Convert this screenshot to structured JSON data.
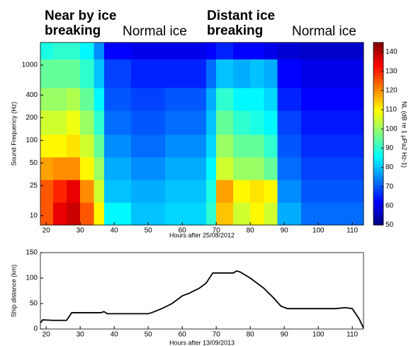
{
  "chart_data": [
    {
      "type": "heatmap",
      "xlabel": "Hours after 25/08/2012",
      "ylabel": "Sound Frequency (Hz)",
      "xlim": [
        18.3,
        113.3
      ],
      "xticks": [
        20,
        30,
        40,
        50,
        60,
        70,
        80,
        90,
        100,
        110
      ],
      "ylim": [
        7.5,
        2000
      ],
      "yscale": "log",
      "yticks": [
        10,
        25,
        50,
        100,
        200,
        400,
        1000
      ],
      "x_edges": [
        18.3,
        22,
        26,
        30,
        34,
        37,
        45,
        55,
        67,
        70,
        75,
        80,
        84,
        88,
        95,
        113.3
      ],
      "y_edges": [
        7.5,
        15,
        30,
        60,
        120,
        250,
        500,
        1200,
        2000
      ],
      "z": [
        [
          125,
          125,
          118,
          110,
          105,
          100,
          95,
          88
        ],
        [
          135,
          130,
          120,
          110,
          105,
          100,
          95,
          90
        ],
        [
          138,
          135,
          120,
          112,
          108,
          102,
          95,
          90
        ],
        [
          125,
          120,
          110,
          105,
          100,
          95,
          90,
          85
        ],
        [
          110,
          105,
          100,
          95,
          90,
          85,
          80,
          75
        ],
        [
          85,
          80,
          78,
          75,
          72,
          70,
          68,
          62
        ],
        [
          80,
          78,
          75,
          72,
          70,
          68,
          65,
          60
        ],
        [
          82,
          80,
          78,
          75,
          72,
          70,
          65,
          60
        ],
        [
          90,
          88,
          85,
          82,
          80,
          78,
          72,
          62
        ],
        [
          115,
          118,
          105,
          100,
          95,
          90,
          80,
          65
        ],
        [
          105,
          110,
          100,
          95,
          90,
          85,
          78,
          62
        ],
        [
          110,
          112,
          100,
          95,
          88,
          85,
          80,
          62
        ],
        [
          105,
          110,
          95,
          90,
          85,
          82,
          78,
          60
        ],
        [
          78,
          75,
          72,
          70,
          68,
          65,
          62,
          58
        ],
        [
          72,
          70,
          68,
          66,
          64,
          62,
          60,
          57
        ]
      ],
      "colormap": "jet",
      "clim": [
        50,
        145
      ],
      "cticks": [
        50,
        60,
        70,
        80,
        90,
        100,
        110,
        120,
        130,
        140
      ],
      "colorbar_label": "NL (dB re 1 μPa2 Hz-1)",
      "annotations": [
        "Near by ice breaking",
        "Normal ice",
        "Distant ice breaking",
        "Normal ice"
      ]
    },
    {
      "type": "line",
      "xlabel": "Hours after 13/09/2013",
      "ylabel": "Ship distance (km)",
      "xlim": [
        18.3,
        113.3
      ],
      "xticks": [
        20,
        30,
        40,
        50,
        60,
        70,
        80,
        90,
        100,
        110
      ],
      "ylim": [
        0,
        150
      ],
      "yticks": [
        0,
        50,
        100,
        150
      ],
      "color": "#000000",
      "x": [
        18.3,
        19,
        22,
        26,
        27.5,
        30,
        36,
        37,
        38,
        45,
        50,
        51,
        54,
        57,
        60,
        62,
        65,
        67,
        68,
        69,
        75,
        76,
        77,
        80,
        84,
        87,
        89,
        91,
        100,
        105,
        108,
        110,
        112,
        113.3
      ],
      "values": [
        12,
        18,
        17,
        17,
        32,
        32,
        32,
        34,
        30,
        30,
        30,
        32,
        40,
        50,
        65,
        70,
        80,
        90,
        100,
        110,
        110,
        114,
        112,
        100,
        80,
        60,
        45,
        40,
        40,
        40,
        42,
        40,
        20,
        2
      ]
    }
  ]
}
